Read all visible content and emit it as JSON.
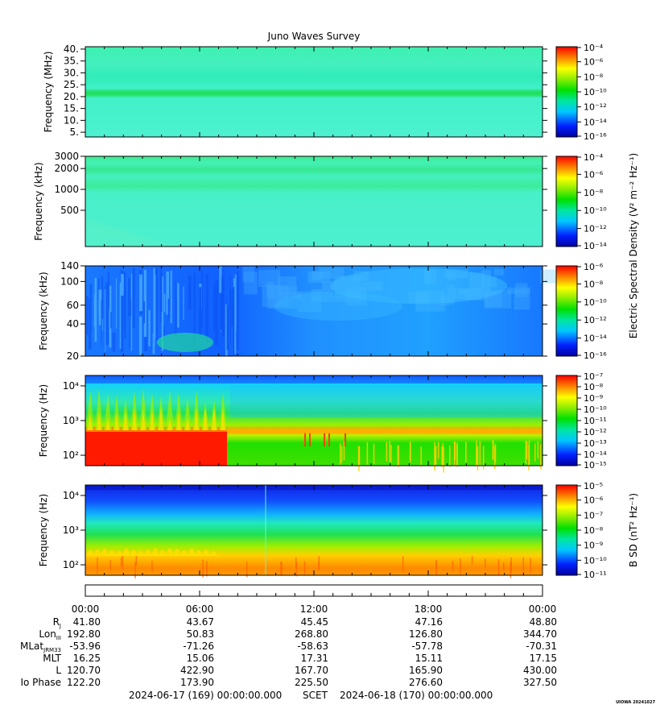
{
  "title": "Juno Waves Survey",
  "footer_left": "2024-06-17 (169) 00:00:00.000",
  "footer_mid": "SCET",
  "footer_right": "2024-06-18 (170) 00:00:00.000",
  "credit": "UIOWA 20241027",
  "electric_label": "Electric Spectral Density (V² m⁻² Hz⁻¹)",
  "magnetic_label": "B SD (nT² Hz⁻¹)",
  "chart_data": [
    {
      "type": "heatmap",
      "panel": "MHz",
      "ylabel": "Frequency (MHz)",
      "y_ticks": [
        "40.",
        "35.",
        "30.",
        "25.",
        "20.",
        "15.",
        "10.",
        "5."
      ],
      "y_range": [
        3,
        41
      ],
      "color_ticks": [
        "10⁻⁴",
        "10⁻⁶",
        "10⁻⁸",
        "10⁻¹⁰",
        "10⁻¹²",
        "10⁻¹⁴",
        "10⁻¹⁶"
      ],
      "color_exp_range": [
        -4,
        -16
      ]
    },
    {
      "type": "heatmap",
      "panel": "kHz high",
      "ylabel": "Frequency (kHz)",
      "y_ticks": [
        "3000",
        "2000",
        "1000",
        "500"
      ],
      "y_range": [
        150,
        3000
      ],
      "color_ticks": [
        "10⁻⁴",
        "10⁻⁶",
        "10⁻⁸",
        "10⁻¹⁰",
        "10⁻¹²",
        "10⁻¹⁴"
      ],
      "color_exp_range": [
        -4,
        -14
      ]
    },
    {
      "type": "heatmap",
      "panel": "kHz low",
      "ylabel": "Frequency (kHz)",
      "y_ticks": [
        "140",
        "100",
        "60",
        "40",
        "20"
      ],
      "y_range": [
        20,
        140
      ],
      "color_ticks": [
        "10⁻⁶",
        "10⁻⁸",
        "10⁻¹⁰",
        "10⁻¹²",
        "10⁻¹⁴",
        "10⁻¹⁶"
      ],
      "color_exp_range": [
        -6,
        -16
      ]
    },
    {
      "type": "heatmap",
      "panel": "Hz electric",
      "ylabel": "Frequency (Hz)",
      "y_ticks": [
        "10⁴",
        "10³",
        "10²"
      ],
      "y_range": [
        50,
        20000
      ],
      "color_ticks": [
        "10⁻⁷",
        "10⁻⁸",
        "10⁻⁹",
        "10⁻¹⁰",
        "10⁻¹¹",
        "10⁻¹²",
        "10⁻¹³",
        "10⁻¹⁴",
        "10⁻¹⁵"
      ],
      "color_exp_range": [
        -7,
        -15
      ]
    },
    {
      "type": "heatmap",
      "panel": "Hz magnetic",
      "ylabel": "Frequency (Hz)",
      "y_ticks": [
        "10⁴",
        "10³",
        "10²"
      ],
      "y_range": [
        50,
        20000
      ],
      "color_ticks": [
        "10⁻⁵",
        "10⁻⁶",
        "10⁻⁷",
        "10⁻⁸",
        "10⁻⁹",
        "10⁻¹⁰",
        "10⁻¹¹"
      ],
      "color_exp_range": [
        -5,
        -11
      ]
    }
  ],
  "x_ticks": [
    "00:00",
    "06:00",
    "12:00",
    "18:00",
    "00:00"
  ],
  "ephemeris": [
    {
      "label": "R",
      "sub": "J",
      "values": [
        "41.80",
        "43.67",
        "45.45",
        "47.16",
        "48.80"
      ]
    },
    {
      "label": "Lon",
      "sub": "III",
      "values": [
        "192.80",
        "50.83",
        "268.80",
        "126.80",
        "344.70"
      ]
    },
    {
      "label": "MLat",
      "sub": "JRM33",
      "values": [
        "-53.96",
        "-71.26",
        "-58.63",
        "-57.78",
        "-70.31"
      ]
    },
    {
      "label": "MLT",
      "sub": "",
      "values": [
        "16.25",
        "15.06",
        "17.31",
        "15.11",
        "17.15"
      ]
    },
    {
      "label": "L",
      "sub": "",
      "values": [
        "120.70",
        "422.90",
        "167.70",
        "165.90",
        "430.00"
      ]
    },
    {
      "label": "Io Phase",
      "sub": "",
      "values": [
        "122.20",
        "173.90",
        "225.50",
        "276.60",
        "327.50"
      ]
    }
  ]
}
